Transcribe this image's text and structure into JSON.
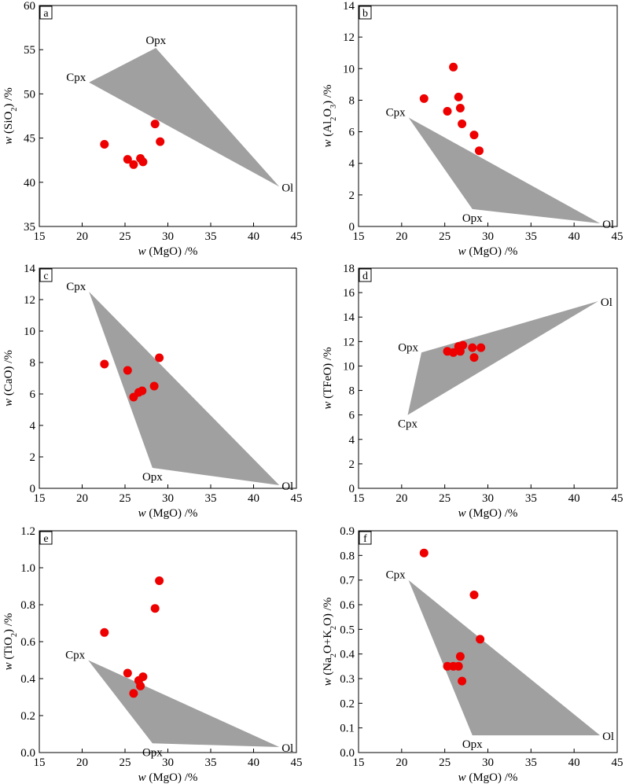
{
  "figure": {
    "colors": {
      "field": "#a0a0a0",
      "point": "#ee0000",
      "axis": "#000000"
    }
  },
  "chart_data": [
    {
      "type": "scatter",
      "panel_label": "a",
      "xlabel_prefix": "w",
      "xlabel_body": " (MgO) /%",
      "ylabel_parts": [
        {
          "t": "w",
          "s": "i"
        },
        {
          "t": " (SiO",
          "s": "n"
        },
        {
          "t": "2",
          "s": "sub"
        },
        {
          "t": ") /%",
          "s": "n"
        }
      ],
      "xlim": [
        15,
        45
      ],
      "ylim": [
        35,
        60
      ],
      "xticks": [
        15,
        20,
        25,
        30,
        35,
        40,
        45
      ],
      "xtick_labels": [
        "15",
        "20",
        "25",
        "30",
        "35",
        "40",
        "45"
      ],
      "yticks": [
        35,
        40,
        45,
        50,
        55,
        60
      ],
      "ytick_labels": [
        "35",
        "40",
        "45",
        "50",
        "55",
        "60"
      ],
      "field": [
        {
          "name": "Cpx",
          "x": 20.8,
          "y": 51.3,
          "anchor": "end"
        },
        {
          "name": "Opx",
          "x": 28.6,
          "y": 55.2,
          "anchor": "middle"
        },
        {
          "name": "Ol",
          "x": 43.0,
          "y": 39.5,
          "anchor": "start"
        }
      ],
      "points": [
        {
          "x": 22.6,
          "y": 44.3
        },
        {
          "x": 25.3,
          "y": 42.6
        },
        {
          "x": 26.0,
          "y": 42.0
        },
        {
          "x": 26.8,
          "y": 42.7
        },
        {
          "x": 27.1,
          "y": 42.3
        },
        {
          "x": 28.5,
          "y": 46.6
        },
        {
          "x": 29.1,
          "y": 44.6
        }
      ]
    },
    {
      "type": "scatter",
      "panel_label": "b",
      "xlabel_prefix": "w",
      "xlabel_body": " (MgO) /%",
      "ylabel_parts": [
        {
          "t": "w",
          "s": "i"
        },
        {
          "t": " (Al",
          "s": "n"
        },
        {
          "t": "2",
          "s": "sub"
        },
        {
          "t": "O",
          "s": "n"
        },
        {
          "t": "3",
          "s": "sub"
        },
        {
          "t": ") /%",
          "s": "n"
        }
      ],
      "xlim": [
        15,
        45
      ],
      "ylim": [
        0,
        14
      ],
      "xticks": [
        15,
        20,
        25,
        30,
        35,
        40,
        45
      ],
      "xtick_labels": [
        "15",
        "20",
        "25",
        "30",
        "35",
        "40",
        "45"
      ],
      "yticks": [
        0,
        2,
        4,
        6,
        8,
        10,
        12,
        14
      ],
      "ytick_labels": [
        "0",
        "2",
        "4",
        "6",
        "8",
        "10",
        "12",
        "14"
      ],
      "field": [
        {
          "name": "Cpx",
          "x": 20.8,
          "y": 6.9,
          "anchor": "end"
        },
        {
          "name": "Opx",
          "x": 28.2,
          "y": 1.1,
          "anchor": "middle"
        },
        {
          "name": "Ol",
          "x": 43.0,
          "y": 0.2,
          "anchor": "start"
        }
      ],
      "points": [
        {
          "x": 22.6,
          "y": 8.1
        },
        {
          "x": 25.3,
          "y": 7.3
        },
        {
          "x": 26.0,
          "y": 10.1
        },
        {
          "x": 26.6,
          "y": 8.2
        },
        {
          "x": 26.8,
          "y": 7.5
        },
        {
          "x": 27.0,
          "y": 6.5
        },
        {
          "x": 28.4,
          "y": 5.8
        },
        {
          "x": 29.0,
          "y": 4.8
        }
      ]
    },
    {
      "type": "scatter",
      "panel_label": "c",
      "xlabel_prefix": "w",
      "xlabel_body": " (MgO) /%",
      "ylabel_parts": [
        {
          "t": "w",
          "s": "i"
        },
        {
          "t": " (CaO) /%",
          "s": "n"
        }
      ],
      "xlim": [
        15,
        45
      ],
      "ylim": [
        0,
        14
      ],
      "xticks": [
        15,
        20,
        25,
        30,
        35,
        40,
        45
      ],
      "xtick_labels": [
        "15",
        "20",
        "25",
        "30",
        "35",
        "40",
        "45"
      ],
      "yticks": [
        0,
        2,
        4,
        6,
        8,
        10,
        12,
        14
      ],
      "ytick_labels": [
        "0",
        "2",
        "4",
        "6",
        "8",
        "10",
        "12",
        "14"
      ],
      "field": [
        {
          "name": "Cpx",
          "x": 20.8,
          "y": 12.5,
          "anchor": "end"
        },
        {
          "name": "Opx",
          "x": 28.2,
          "y": 1.3,
          "anchor": "middle"
        },
        {
          "name": "Ol",
          "x": 43.0,
          "y": 0.2,
          "anchor": "start"
        }
      ],
      "points": [
        {
          "x": 22.6,
          "y": 7.9
        },
        {
          "x": 25.3,
          "y": 7.5
        },
        {
          "x": 26.0,
          "y": 5.8
        },
        {
          "x": 26.6,
          "y": 6.1
        },
        {
          "x": 27.0,
          "y": 6.2
        },
        {
          "x": 28.4,
          "y": 6.5
        },
        {
          "x": 29.0,
          "y": 8.3
        }
      ]
    },
    {
      "type": "scatter",
      "panel_label": "d",
      "xlabel_prefix": "w",
      "xlabel_body": " (MgO) /%",
      "ylabel_parts": [
        {
          "t": "w",
          "s": "i"
        },
        {
          "t": " (TFeO) /%",
          "s": "n"
        }
      ],
      "xlim": [
        15,
        45
      ],
      "ylim": [
        0,
        18
      ],
      "xticks": [
        15,
        20,
        25,
        30,
        35,
        40,
        45
      ],
      "xtick_labels": [
        "15",
        "20",
        "25",
        "30",
        "35",
        "40",
        "45"
      ],
      "yticks": [
        0,
        2,
        4,
        6,
        8,
        10,
        12,
        14,
        16,
        18
      ],
      "ytick_labels": [
        "0",
        "2",
        "4",
        "6",
        "8",
        "10",
        "12",
        "14",
        "16",
        "18"
      ],
      "field": [
        {
          "name": "Cpx",
          "x": 20.7,
          "y": 6.0,
          "anchor": "middle"
        },
        {
          "name": "Opx",
          "x": 22.3,
          "y": 11.1,
          "anchor": "end"
        },
        {
          "name": "Ol",
          "x": 42.8,
          "y": 15.3,
          "anchor": "start"
        }
      ],
      "points": [
        {
          "x": 25.3,
          "y": 11.2
        },
        {
          "x": 26.0,
          "y": 11.1
        },
        {
          "x": 26.6,
          "y": 11.6
        },
        {
          "x": 26.8,
          "y": 11.2
        },
        {
          "x": 27.1,
          "y": 11.7
        },
        {
          "x": 28.2,
          "y": 11.5
        },
        {
          "x": 28.4,
          "y": 10.7
        },
        {
          "x": 29.2,
          "y": 11.5
        }
      ]
    },
    {
      "type": "scatter",
      "panel_label": "e",
      "xlabel_prefix": "w",
      "xlabel_body": " (MgO) /%",
      "ylabel_parts": [
        {
          "t": "w",
          "s": "i"
        },
        {
          "t": " (TiO",
          "s": "n"
        },
        {
          "t": "2",
          "s": "sub"
        },
        {
          "t": ") /%",
          "s": "n"
        }
      ],
      "xlim": [
        15,
        45
      ],
      "ylim": [
        0,
        1.2
      ],
      "xticks": [
        15,
        20,
        25,
        30,
        35,
        40,
        45
      ],
      "xtick_labels": [
        "15",
        "20",
        "25",
        "30",
        "35",
        "40",
        "45"
      ],
      "yticks": [
        0,
        0.2,
        0.4,
        0.6,
        0.8,
        1.0,
        1.2
      ],
      "ytick_labels": [
        "0.0",
        "0.2",
        "0.4",
        "0.6",
        "0.8",
        "1.0",
        "1.2"
      ],
      "field": [
        {
          "name": "Cpx",
          "x": 20.7,
          "y": 0.5,
          "anchor": "end"
        },
        {
          "name": "Opx",
          "x": 28.2,
          "y": 0.05,
          "anchor": "middle"
        },
        {
          "name": "Ol",
          "x": 43.0,
          "y": 0.03,
          "anchor": "start"
        }
      ],
      "points": [
        {
          "x": 22.6,
          "y": 0.65
        },
        {
          "x": 25.3,
          "y": 0.43
        },
        {
          "x": 26.0,
          "y": 0.32
        },
        {
          "x": 26.6,
          "y": 0.39
        },
        {
          "x": 26.8,
          "y": 0.36
        },
        {
          "x": 27.1,
          "y": 0.41
        },
        {
          "x": 28.5,
          "y": 0.78
        },
        {
          "x": 29.0,
          "y": 0.93
        }
      ]
    },
    {
      "type": "scatter",
      "panel_label": "f",
      "xlabel_prefix": "w",
      "xlabel_body": " (MgO) /%",
      "ylabel_parts": [
        {
          "t": "w",
          "s": "i"
        },
        {
          "t": " (Na",
          "s": "n"
        },
        {
          "t": "2",
          "s": "sub"
        },
        {
          "t": "O+K",
          "s": "n"
        },
        {
          "t": "2",
          "s": "sub"
        },
        {
          "t": "O) /%",
          "s": "n"
        }
      ],
      "xlim": [
        15,
        45
      ],
      "ylim": [
        0,
        0.9
      ],
      "xticks": [
        15,
        20,
        25,
        30,
        35,
        40,
        45
      ],
      "xtick_labels": [
        "15",
        "20",
        "25",
        "30",
        "35",
        "40",
        "45"
      ],
      "yticks": [
        0,
        0.1,
        0.2,
        0.3,
        0.4,
        0.5,
        0.6,
        0.7,
        0.8,
        0.9
      ],
      "ytick_labels": [
        "0.0",
        "0.1",
        "0.2",
        "0.3",
        "0.4",
        "0.5",
        "0.6",
        "0.7",
        "0.8",
        "0.9"
      ],
      "field": [
        {
          "name": "Cpx",
          "x": 20.8,
          "y": 0.7,
          "anchor": "end"
        },
        {
          "name": "Opx",
          "x": 28.2,
          "y": 0.07,
          "anchor": "middle"
        },
        {
          "name": "Ol",
          "x": 43.0,
          "y": 0.07,
          "anchor": "start"
        }
      ],
      "points": [
        {
          "x": 22.6,
          "y": 0.81
        },
        {
          "x": 25.3,
          "y": 0.35
        },
        {
          "x": 26.0,
          "y": 0.35
        },
        {
          "x": 26.6,
          "y": 0.35
        },
        {
          "x": 26.8,
          "y": 0.39
        },
        {
          "x": 27.0,
          "y": 0.29
        },
        {
          "x": 28.4,
          "y": 0.64
        },
        {
          "x": 29.1,
          "y": 0.46
        }
      ]
    }
  ]
}
